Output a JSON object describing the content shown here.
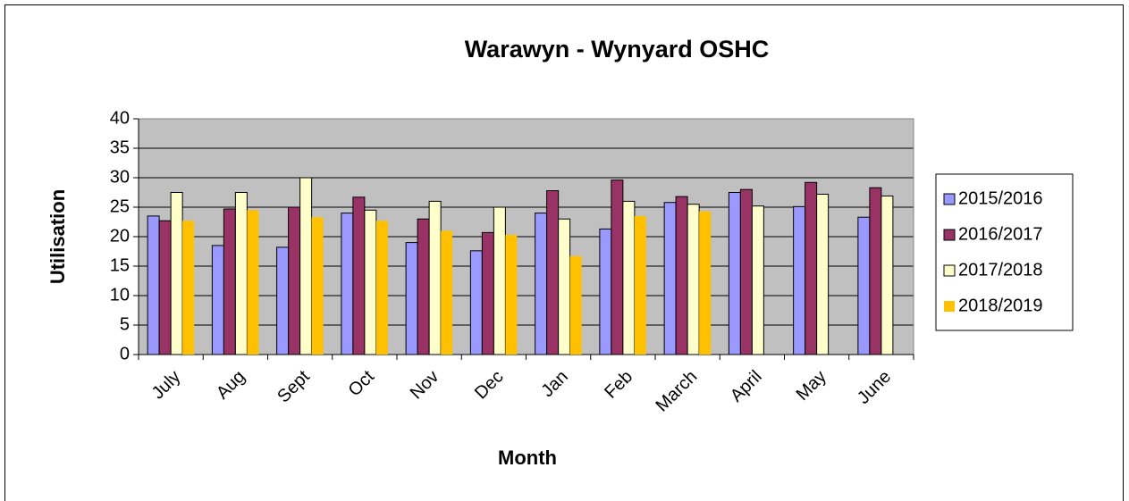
{
  "chart_data": {
    "type": "bar",
    "title": "Warawyn - Wynyard OSHC",
    "x_label": "Month",
    "y_label": "Utilisation",
    "categories": [
      "July",
      "Aug",
      "Sept",
      "Oct",
      "Nov",
      "Dec",
      "Jan",
      "Feb",
      "March",
      "April",
      "May",
      "June"
    ],
    "series": [
      {
        "name": "2015/2016",
        "color": "#9999ff",
        "border": true,
        "values": [
          23.5,
          18.5,
          18.2,
          24,
          19,
          17.6,
          24,
          21.3,
          25.8,
          27.5,
          25.1,
          23.3
        ]
      },
      {
        "name": "2016/2017",
        "color": "#993366",
        "border": true,
        "values": [
          22.7,
          24.7,
          25,
          26.7,
          23,
          20.7,
          27.8,
          29.6,
          26.8,
          28,
          29.2,
          28.3
        ]
      },
      {
        "name": "2017/2018",
        "color": "#ffffcc",
        "border": true,
        "values": [
          27.5,
          27.5,
          30,
          24.5,
          26,
          25,
          23,
          26,
          25.5,
          25.2,
          27.2,
          26.9
        ]
      },
      {
        "name": "2018/2019",
        "color": "#ffc000",
        "border": false,
        "values": [
          22.7,
          24.5,
          23.3,
          22.7,
          21,
          20.3,
          16.7,
          23.5,
          24.3,
          null,
          null,
          null
        ]
      }
    ],
    "ylim": [
      0,
      40
    ],
    "yticks": [
      0,
      5,
      10,
      15,
      20,
      25,
      30,
      35,
      40
    ],
    "grid": true,
    "legend": "right"
  }
}
